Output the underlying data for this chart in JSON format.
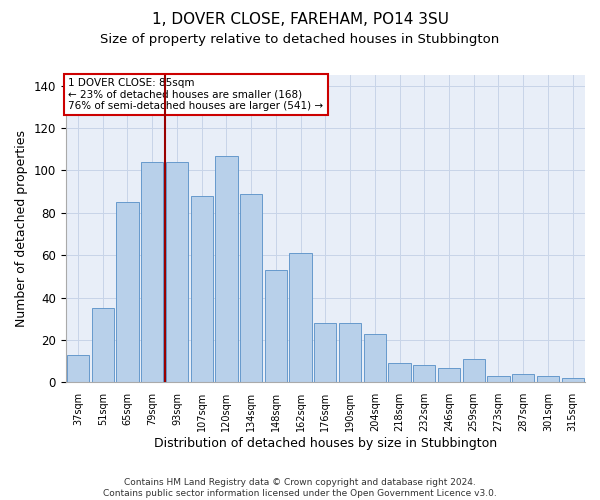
{
  "title": "1, DOVER CLOSE, FAREHAM, PO14 3SU",
  "subtitle": "Size of property relative to detached houses in Stubbington",
  "xlabel": "Distribution of detached houses by size in Stubbington",
  "ylabel": "Number of detached properties",
  "categories": [
    "37sqm",
    "51sqm",
    "65sqm",
    "79sqm",
    "93sqm",
    "107sqm",
    "120sqm",
    "134sqm",
    "148sqm",
    "162sqm",
    "176sqm",
    "190sqm",
    "204sqm",
    "218sqm",
    "232sqm",
    "246sqm",
    "259sqm",
    "273sqm",
    "287sqm",
    "301sqm",
    "315sqm"
  ],
  "values": [
    13,
    35,
    85,
    104,
    104,
    88,
    107,
    89,
    53,
    61,
    28,
    28,
    23,
    9,
    8,
    7,
    11,
    3,
    4,
    3,
    2
  ],
  "bar_color": "#b8d0ea",
  "bar_edge_color": "#6699cc",
  "vline_color": "#990000",
  "annotation_text": "1 DOVER CLOSE: 85sqm\n← 23% of detached houses are smaller (168)\n76% of semi-detached houses are larger (541) →",
  "annotation_box_color": "#ffffff",
  "annotation_box_edge": "#cc0000",
  "ylim": [
    0,
    145
  ],
  "yticks": [
    0,
    20,
    40,
    60,
    80,
    100,
    120,
    140
  ],
  "grid_color": "#c8d4e8",
  "bg_color": "#e8eef8",
  "footer": "Contains HM Land Registry data © Crown copyright and database right 2024.\nContains public sector information licensed under the Open Government Licence v3.0.",
  "title_fontsize": 11,
  "subtitle_fontsize": 9.5,
  "xlabel_fontsize": 9,
  "ylabel_fontsize": 9,
  "footer_fontsize": 6.5
}
